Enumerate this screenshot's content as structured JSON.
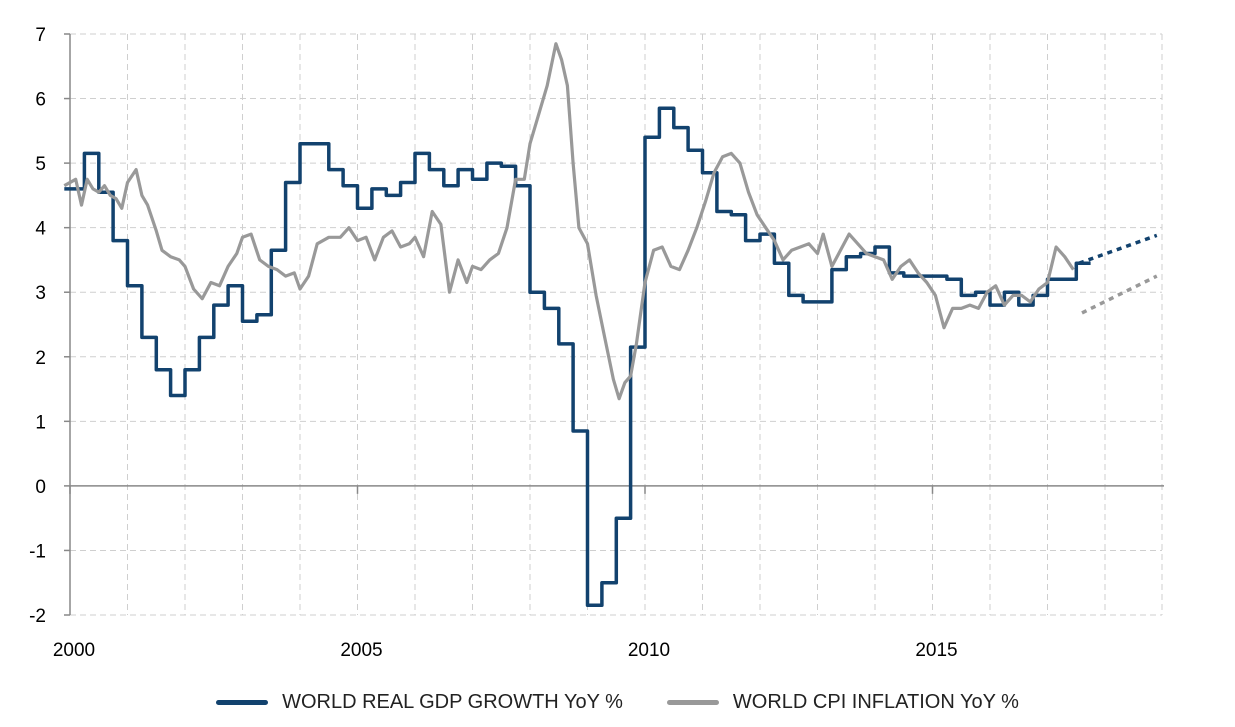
{
  "chart_data": {
    "type": "line",
    "title": "",
    "xlabel": "",
    "ylabel": "",
    "xlim": [
      2000,
      2018.9
    ],
    "ylim": [
      -2,
      7
    ],
    "grid": true,
    "legend_position": "bottom-center",
    "x_ticks": [
      {
        "value": 2000,
        "label": "2000"
      },
      {
        "value": 2005,
        "label": "2005"
      },
      {
        "value": 2010,
        "label": "2010"
      },
      {
        "value": 2015,
        "label": "2015"
      }
    ],
    "y_ticks": [
      {
        "value": 7,
        "label": "7"
      },
      {
        "value": 6,
        "label": "6"
      },
      {
        "value": 5,
        "label": "5"
      },
      {
        "value": 4,
        "label": "4"
      },
      {
        "value": 3,
        "label": "3"
      },
      {
        "value": 2,
        "label": "2"
      },
      {
        "value": 1,
        "label": "1"
      },
      {
        "value": 0,
        "label": "0"
      },
      {
        "value": -1,
        "label": "-1"
      },
      {
        "value": -2,
        "label": "-2"
      }
    ],
    "series": [
      {
        "name": "WORLD REAL GDP GROWTH YoY %",
        "color": "#12426e",
        "style": "step",
        "x": [
          1999.9,
          2000.25,
          2000.5,
          2000.75,
          2001.0,
          2001.25,
          2001.5,
          2001.75,
          2002.0,
          2002.25,
          2002.5,
          2002.75,
          2003.0,
          2003.25,
          2003.5,
          2003.75,
          2004.0,
          2004.25,
          2004.5,
          2004.75,
          2005.0,
          2005.25,
          2005.5,
          2005.75,
          2006.0,
          2006.25,
          2006.5,
          2006.75,
          2007.0,
          2007.25,
          2007.5,
          2007.75,
          2008.0,
          2008.25,
          2008.5,
          2008.75,
          2009.0,
          2009.25,
          2009.5,
          2009.75,
          2010.0,
          2010.25,
          2010.5,
          2010.75,
          2011.0,
          2011.25,
          2011.5,
          2011.75,
          2012.0,
          2012.25,
          2012.5,
          2012.75,
          2013.0,
          2013.25,
          2013.5,
          2013.75,
          2014.0,
          2014.25,
          2014.5,
          2014.75,
          2015.0,
          2015.25,
          2015.5,
          2015.75,
          2016.0,
          2016.25,
          2016.5,
          2016.75,
          2017.0,
          2017.25,
          2017.5
        ],
        "y": [
          4.6,
          5.15,
          4.55,
          3.8,
          3.1,
          2.3,
          1.8,
          1.4,
          1.8,
          2.3,
          2.8,
          3.1,
          2.55,
          2.65,
          3.65,
          4.7,
          5.3,
          5.3,
          4.9,
          4.65,
          4.3,
          4.6,
          4.5,
          4.7,
          5.15,
          4.9,
          4.65,
          4.9,
          4.75,
          5.0,
          4.95,
          4.65,
          3.0,
          2.75,
          2.2,
          0.85,
          -1.85,
          -1.5,
          -0.5,
          2.15,
          5.4,
          5.85,
          5.55,
          5.2,
          4.85,
          4.25,
          4.2,
          3.8,
          3.9,
          3.45,
          2.95,
          2.85,
          2.85,
          3.35,
          3.55,
          3.6,
          3.7,
          3.3,
          3.25,
          3.25,
          3.25,
          3.2,
          2.95,
          3.0,
          2.8,
          3.0,
          2.8,
          2.95,
          3.2,
          3.2,
          3.45
        ]
      },
      {
        "name": "WORLD CPI INFLATION YoY %",
        "color": "#999999",
        "style": "line",
        "x": [
          1999.9,
          2000.1,
          2000.2,
          2000.3,
          2000.4,
          2000.5,
          2000.6,
          2000.7,
          2000.8,
          2000.9,
          2001.0,
          2001.15,
          2001.25,
          2001.35,
          2001.5,
          2001.6,
          2001.75,
          2001.9,
          2002.0,
          2002.15,
          2002.3,
          2002.45,
          2002.6,
          2002.75,
          2002.9,
          2003.0,
          2003.15,
          2003.3,
          2003.45,
          2003.6,
          2003.75,
          2003.9,
          2004.0,
          2004.15,
          2004.3,
          2004.5,
          2004.7,
          2004.85,
          2005.0,
          2005.15,
          2005.3,
          2005.45,
          2005.6,
          2005.75,
          2005.9,
          2006.0,
          2006.15,
          2006.3,
          2006.45,
          2006.6,
          2006.75,
          2006.9,
          2007.0,
          2007.15,
          2007.3,
          2007.45,
          2007.6,
          2007.75,
          2007.9,
          2008.0,
          2008.15,
          2008.3,
          2008.45,
          2008.55,
          2008.65,
          2008.75,
          2008.85,
          2009.0,
          2009.15,
          2009.3,
          2009.45,
          2009.55,
          2009.65,
          2009.75,
          2009.85,
          2010.0,
          2010.15,
          2010.3,
          2010.45,
          2010.6,
          2010.75,
          2010.9,
          2011.05,
          2011.2,
          2011.35,
          2011.5,
          2011.65,
          2011.8,
          2011.95,
          2012.1,
          2012.25,
          2012.4,
          2012.55,
          2012.7,
          2012.85,
          2013.0,
          2013.1,
          2013.25,
          2013.4,
          2013.55,
          2013.7,
          2013.85,
          2014.0,
          2014.15,
          2014.3,
          2014.45,
          2014.6,
          2014.75,
          2014.9,
          2015.05,
          2015.2,
          2015.35,
          2015.5,
          2015.65,
          2015.8,
          2015.95,
          2016.1,
          2016.25,
          2016.4,
          2016.55,
          2016.7,
          2016.85,
          2017.0,
          2017.15,
          2017.3,
          2017.45
        ],
        "y": [
          4.65,
          4.75,
          4.35,
          4.75,
          4.6,
          4.55,
          4.65,
          4.5,
          4.45,
          4.3,
          4.7,
          4.9,
          4.5,
          4.35,
          3.95,
          3.65,
          3.55,
          3.5,
          3.4,
          3.05,
          2.9,
          3.15,
          3.1,
          3.4,
          3.6,
          3.85,
          3.9,
          3.5,
          3.4,
          3.35,
          3.25,
          3.3,
          3.05,
          3.25,
          3.75,
          3.85,
          3.85,
          4.0,
          3.8,
          3.85,
          3.5,
          3.85,
          3.95,
          3.7,
          3.75,
          3.85,
          3.55,
          4.25,
          4.05,
          3.0,
          3.5,
          3.15,
          3.4,
          3.35,
          3.5,
          3.6,
          4.0,
          4.75,
          4.75,
          5.3,
          5.75,
          6.2,
          6.85,
          6.6,
          6.2,
          5.0,
          4.0,
          3.75,
          2.95,
          2.3,
          1.65,
          1.35,
          1.6,
          1.7,
          2.2,
          3.15,
          3.65,
          3.7,
          3.4,
          3.35,
          3.65,
          4.0,
          4.4,
          4.85,
          5.1,
          5.15,
          5.0,
          4.55,
          4.2,
          4.0,
          3.8,
          3.5,
          3.65,
          3.7,
          3.75,
          3.6,
          3.9,
          3.4,
          3.65,
          3.9,
          3.75,
          3.6,
          3.55,
          3.5,
          3.2,
          3.4,
          3.5,
          3.3,
          3.15,
          2.95,
          2.45,
          2.75,
          2.75,
          2.8,
          2.75,
          3.0,
          3.1,
          2.8,
          2.95,
          2.95,
          2.85,
          3.05,
          3.15,
          3.7,
          3.55,
          3.35
        ]
      },
      {
        "name": "",
        "color": "#12426e",
        "style": "dotted",
        "x": [
          2017.55,
          2018.9
        ],
        "y": [
          3.45,
          3.88
        ]
      },
      {
        "name": "",
        "color": "#999999",
        "style": "dotted",
        "x": [
          2017.6,
          2018.9
        ],
        "y": [
          2.68,
          3.25
        ]
      }
    ]
  },
  "legend": [
    {
      "label": "WORLD REAL GDP GROWTH YoY %",
      "color": "#12426e"
    },
    {
      "label": "WORLD CPI INFLATION YoY %",
      "color": "#999999"
    }
  ]
}
